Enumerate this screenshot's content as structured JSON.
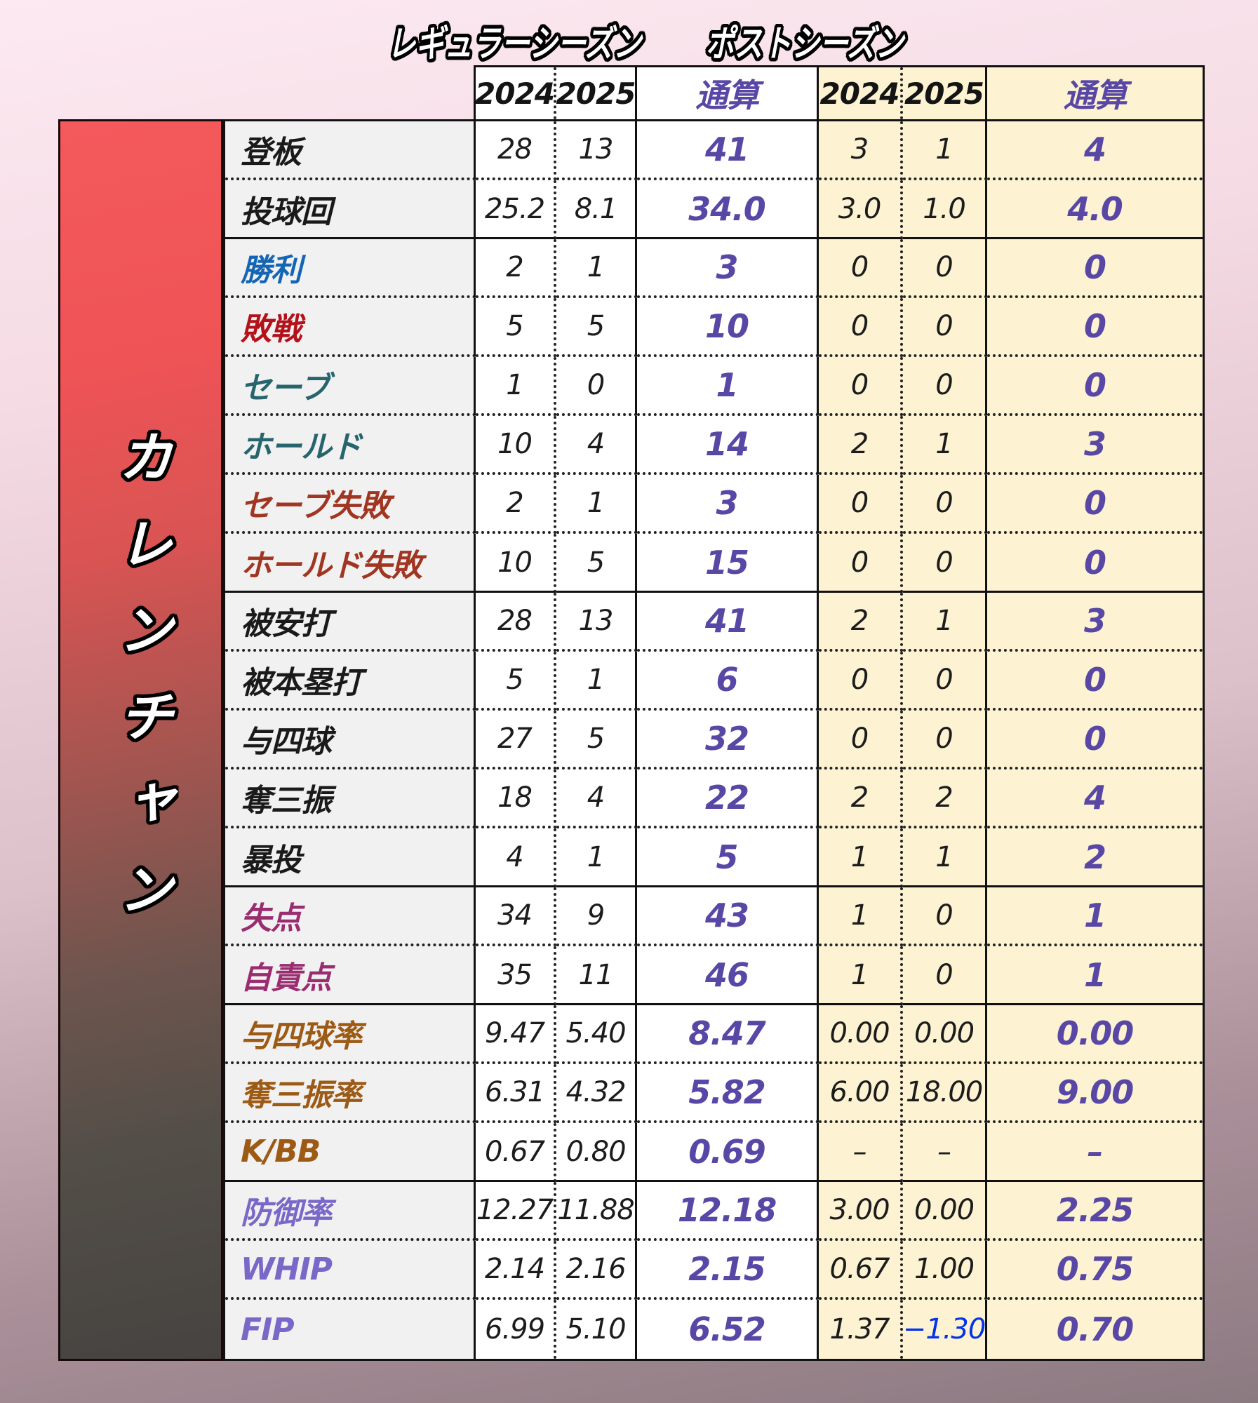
{
  "player": {
    "name": "カレンチャン"
  },
  "palette": {
    "total_text": "#5847a5",
    "fip_negative_blue": "#0433e8",
    "post_bg": "#fdf3d2",
    "label_bg": "#f2f1f1",
    "panel_red_top": "#f4595c",
    "panel_dark_bottom": "#474340",
    "label_colors": {
      "black": "#1a1a1a",
      "blue": "#1565b5",
      "red": "#b3121a",
      "teal": "#26646e",
      "brick": "#a03522",
      "magenta": "#9a2d70",
      "brown": "#9c5a14",
      "purple": "#7a68c8"
    }
  },
  "chart_data": {
    "type": "table",
    "column_groups": [
      {
        "label": "レギュラーシーズン",
        "columns": [
          "2024",
          "2025",
          "通算"
        ]
      },
      {
        "label": "ポストシーズン",
        "columns": [
          "2024",
          "2025",
          "通算"
        ]
      }
    ],
    "rows": [
      {
        "label": "登板",
        "color": "black",
        "section_start": true,
        "reg": [
          "28",
          "13",
          "41"
        ],
        "post": [
          "3",
          "1",
          "4"
        ]
      },
      {
        "label": "投球回",
        "color": "black",
        "reg": [
          "25.2",
          "8.1",
          "34.0"
        ],
        "post": [
          "3.0",
          "1.0",
          "4.0"
        ]
      },
      {
        "label": "勝利",
        "color": "blue",
        "section_start": true,
        "reg": [
          "2",
          "1",
          "3"
        ],
        "post": [
          "0",
          "0",
          "0"
        ]
      },
      {
        "label": "敗戦",
        "color": "red",
        "reg": [
          "5",
          "5",
          "10"
        ],
        "post": [
          "0",
          "0",
          "0"
        ]
      },
      {
        "label": "セーブ",
        "color": "teal",
        "reg": [
          "1",
          "0",
          "1"
        ],
        "post": [
          "0",
          "0",
          "0"
        ]
      },
      {
        "label": "ホールド",
        "color": "teal",
        "reg": [
          "10",
          "4",
          "14"
        ],
        "post": [
          "2",
          "1",
          "3"
        ]
      },
      {
        "label": "セーブ失敗",
        "color": "brick",
        "reg": [
          "2",
          "1",
          "3"
        ],
        "post": [
          "0",
          "0",
          "0"
        ]
      },
      {
        "label": "ホールド失敗",
        "color": "brick",
        "reg": [
          "10",
          "5",
          "15"
        ],
        "post": [
          "0",
          "0",
          "0"
        ]
      },
      {
        "label": "被安打",
        "color": "black",
        "section_start": true,
        "reg": [
          "28",
          "13",
          "41"
        ],
        "post": [
          "2",
          "1",
          "3"
        ]
      },
      {
        "label": "被本塁打",
        "color": "black",
        "reg": [
          "5",
          "1",
          "6"
        ],
        "post": [
          "0",
          "0",
          "0"
        ]
      },
      {
        "label": "与四球",
        "color": "black",
        "reg": [
          "27",
          "5",
          "32"
        ],
        "post": [
          "0",
          "0",
          "0"
        ]
      },
      {
        "label": "奪三振",
        "color": "black",
        "reg": [
          "18",
          "4",
          "22"
        ],
        "post": [
          "2",
          "2",
          "4"
        ]
      },
      {
        "label": "暴投",
        "color": "black",
        "reg": [
          "4",
          "1",
          "5"
        ],
        "post": [
          "1",
          "1",
          "2"
        ]
      },
      {
        "label": "失点",
        "color": "magenta",
        "section_start": true,
        "reg": [
          "34",
          "9",
          "43"
        ],
        "post": [
          "1",
          "0",
          "1"
        ]
      },
      {
        "label": "自責点",
        "color": "magenta",
        "reg": [
          "35",
          "11",
          "46"
        ],
        "post": [
          "1",
          "0",
          "1"
        ]
      },
      {
        "label": "与四球率",
        "color": "brown",
        "section_start": true,
        "reg": [
          "9.47",
          "5.40",
          "8.47"
        ],
        "post": [
          "0.00",
          "0.00",
          "0.00"
        ]
      },
      {
        "label": "奪三振率",
        "color": "brown",
        "reg": [
          "6.31",
          "4.32",
          "5.82"
        ],
        "post": [
          "6.00",
          "18.00",
          "9.00"
        ]
      },
      {
        "label": "K/BB",
        "color": "brown",
        "reg": [
          "0.67",
          "0.80",
          "0.69"
        ],
        "post": [
          "–",
          "–",
          "–"
        ]
      },
      {
        "label": "防御率",
        "color": "purple",
        "section_start": true,
        "reg": [
          "12.27",
          "11.88",
          "12.18"
        ],
        "post": [
          "3.00",
          "0.00",
          "2.25"
        ]
      },
      {
        "label": "WHIP",
        "color": "purple",
        "reg": [
          "2.14",
          "2.16",
          "2.15"
        ],
        "post": [
          "0.67",
          "1.00",
          "0.75"
        ]
      },
      {
        "label": "FIP",
        "color": "purple",
        "reg": [
          "6.99",
          "5.10",
          "6.52"
        ],
        "post": [
          "1.37",
          "−1.30",
          "0.70"
        ],
        "post_2025_color": "#0433e8"
      }
    ]
  }
}
